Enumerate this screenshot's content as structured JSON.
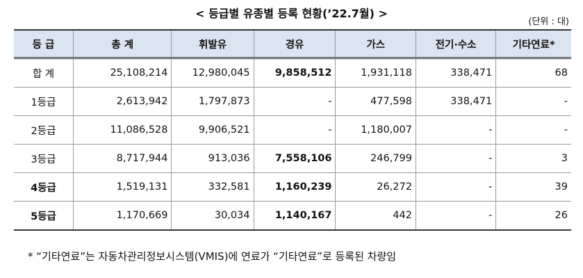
{
  "title": "< 등급별 유종별 등록 현황(’22.7월) >",
  "unit": "(단위 : 대)",
  "table": {
    "header": [
      "등 급",
      "총 계",
      "휘발유",
      "경유",
      "가스",
      "전기·수소",
      "기타연료*"
    ],
    "rows": [
      [
        "합 계",
        "25,108,214",
        "12,980,045",
        "9,858,512",
        "1,931,118",
        "338,471",
        "68"
      ],
      [
        "1등급",
        "2,613,942",
        "1,797,873",
        "-",
        "477,598",
        "338,471",
        "-"
      ],
      [
        "2등급",
        "11,086,528",
        "9,906,521",
        "-",
        "1,180,007",
        "-",
        "-"
      ],
      [
        "3등급",
        "8,717,944",
        "913,036",
        "7,558,106",
        "246,799",
        "-",
        "3"
      ],
      [
        "4등급",
        "1,519,131",
        "332,581",
        "1,160,239",
        "26,272",
        "-",
        "39"
      ],
      [
        "5등급",
        "1,170,669",
        "30,034",
        "1,140,167",
        "442",
        "-",
        "26"
      ]
    ]
  },
  "footnote": "* “기타연료”는 자동차관리정보시스템(VMIS)에 연료가 “기타연료”로 등록된 차량임"
}
